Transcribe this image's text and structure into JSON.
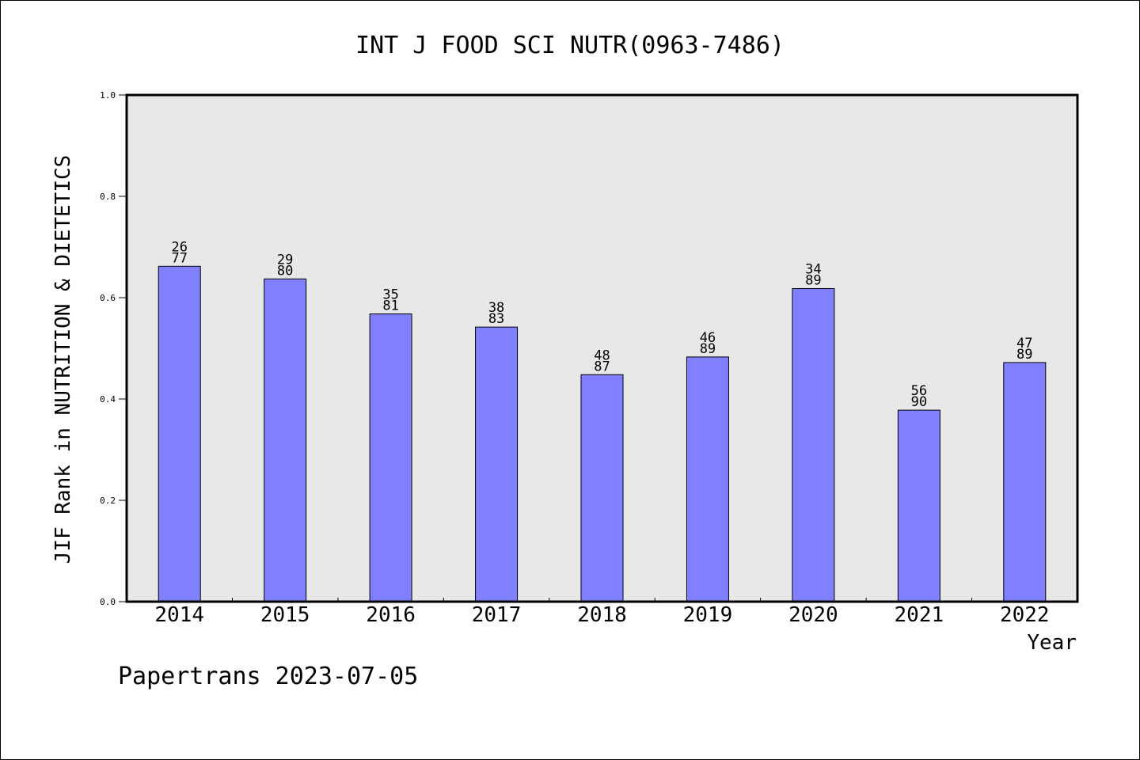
{
  "chart_data": {
    "type": "bar",
    "title": "INT J FOOD SCI NUTR(0963-7486)",
    "xlabel": "Year",
    "ylabel": "JIF Rank in NUTRITION & DIETETICS",
    "categories": [
      "2014",
      "2015",
      "2016",
      "2017",
      "2018",
      "2019",
      "2020",
      "2021",
      "2022"
    ],
    "values": [
      0.662,
      0.637,
      0.568,
      0.542,
      0.448,
      0.483,
      0.618,
      0.378,
      0.472
    ],
    "bar_labels": [
      {
        "rank": "26",
        "total": "77"
      },
      {
        "rank": "29",
        "total": "80"
      },
      {
        "rank": "35",
        "total": "81"
      },
      {
        "rank": "38",
        "total": "83"
      },
      {
        "rank": "48",
        "total": "87"
      },
      {
        "rank": "46",
        "total": "89"
      },
      {
        "rank": "34",
        "total": "89"
      },
      {
        "rank": "56",
        "total": "90"
      },
      {
        "rank": "47",
        "total": "89"
      }
    ],
    "ylim": [
      0.0,
      1.0
    ],
    "yticks": [
      "0.0",
      "0.2",
      "0.4",
      "0.6",
      "0.8",
      "1.0"
    ],
    "grid": false,
    "legend": "none",
    "colors": {
      "bar_fill": "#8080ff",
      "plot_background": "#e8e8e8",
      "axis": "#000000"
    }
  },
  "footer": {
    "source": "Papertrans 2023-07-05"
  }
}
